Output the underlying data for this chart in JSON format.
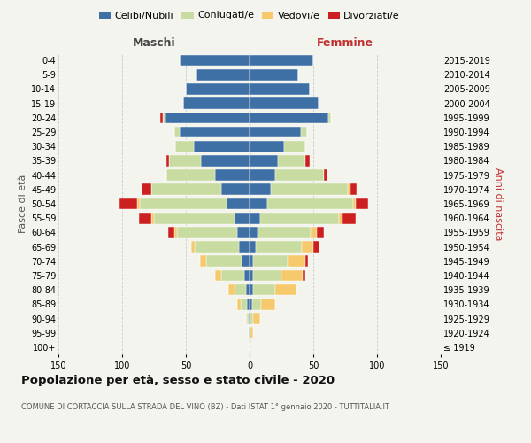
{
  "age_groups": [
    "100+",
    "95-99",
    "90-94",
    "85-89",
    "80-84",
    "75-79",
    "70-74",
    "65-69",
    "60-64",
    "55-59",
    "50-54",
    "45-49",
    "40-44",
    "35-39",
    "30-34",
    "25-29",
    "20-24",
    "15-19",
    "10-14",
    "5-9",
    "0-4"
  ],
  "birth_years": [
    "≤ 1919",
    "1920-1924",
    "1925-1929",
    "1930-1934",
    "1935-1939",
    "1940-1944",
    "1945-1949",
    "1950-1954",
    "1955-1959",
    "1960-1964",
    "1965-1969",
    "1970-1974",
    "1975-1979",
    "1980-1984",
    "1985-1989",
    "1990-1994",
    "1995-1999",
    "2000-2004",
    "2005-2009",
    "2010-2014",
    "2015-2019"
  ],
  "males_celibi": [
    0,
    1,
    1,
    2,
    3,
    4,
    6,
    8,
    10,
    12,
    18,
    22,
    27,
    38,
    44,
    55,
    66,
    52,
    50,
    42,
    55
  ],
  "males_coniugati": [
    0,
    0,
    1,
    5,
    9,
    18,
    28,
    35,
    47,
    63,
    68,
    55,
    38,
    25,
    14,
    4,
    2,
    0,
    0,
    0,
    0
  ],
  "males_vedovi": [
    0,
    0,
    1,
    3,
    5,
    5,
    5,
    3,
    2,
    2,
    2,
    0,
    0,
    0,
    0,
    0,
    0,
    0,
    0,
    0,
    0
  ],
  "males_divorziati": [
    0,
    0,
    0,
    0,
    0,
    0,
    0,
    0,
    5,
    10,
    14,
    8,
    0,
    2,
    0,
    0,
    2,
    0,
    0,
    0,
    0
  ],
  "females_nubili": [
    0,
    1,
    1,
    2,
    3,
    3,
    3,
    5,
    6,
    8,
    14,
    17,
    20,
    22,
    27,
    40,
    62,
    54,
    47,
    38,
    50
  ],
  "females_coniugate": [
    0,
    0,
    2,
    7,
    17,
    22,
    27,
    36,
    42,
    62,
    67,
    60,
    38,
    22,
    17,
    5,
    2,
    0,
    0,
    0,
    0
  ],
  "females_vedove": [
    0,
    2,
    5,
    11,
    17,
    17,
    14,
    9,
    5,
    3,
    2,
    2,
    0,
    0,
    0,
    0,
    0,
    0,
    0,
    0,
    0
  ],
  "females_divorziate": [
    0,
    0,
    0,
    0,
    0,
    2,
    2,
    5,
    5,
    10,
    10,
    5,
    3,
    3,
    0,
    0,
    0,
    0,
    0,
    0,
    0
  ],
  "color_celibi": "#3e6fa5",
  "color_coniugati": "#c8dba0",
  "color_vedovi": "#f5c96c",
  "color_divorziati": "#cc2020",
  "xlim": 150,
  "bg_color": "#f4f4ee",
  "grid_color": "#cccccc",
  "title": "Popolazione per età, sesso e stato civile - 2020",
  "subtitle": "COMUNE DI CORTACCIA SULLA STRADA DEL VINO (BZ) - Dati ISTAT 1° gennaio 2020 - TUTTITALIA.IT",
  "ylabel_left": "Fasce di età",
  "ylabel_right": "Anni di nascita",
  "label_maschi": "Maschi",
  "label_femmine": "Femmine",
  "legend_celibi": "Celibi/Nubili",
  "legend_coniugati": "Coniugati/e",
  "legend_vedovi": "Vedovi/e",
  "legend_divorziati": "Divorziati/e"
}
